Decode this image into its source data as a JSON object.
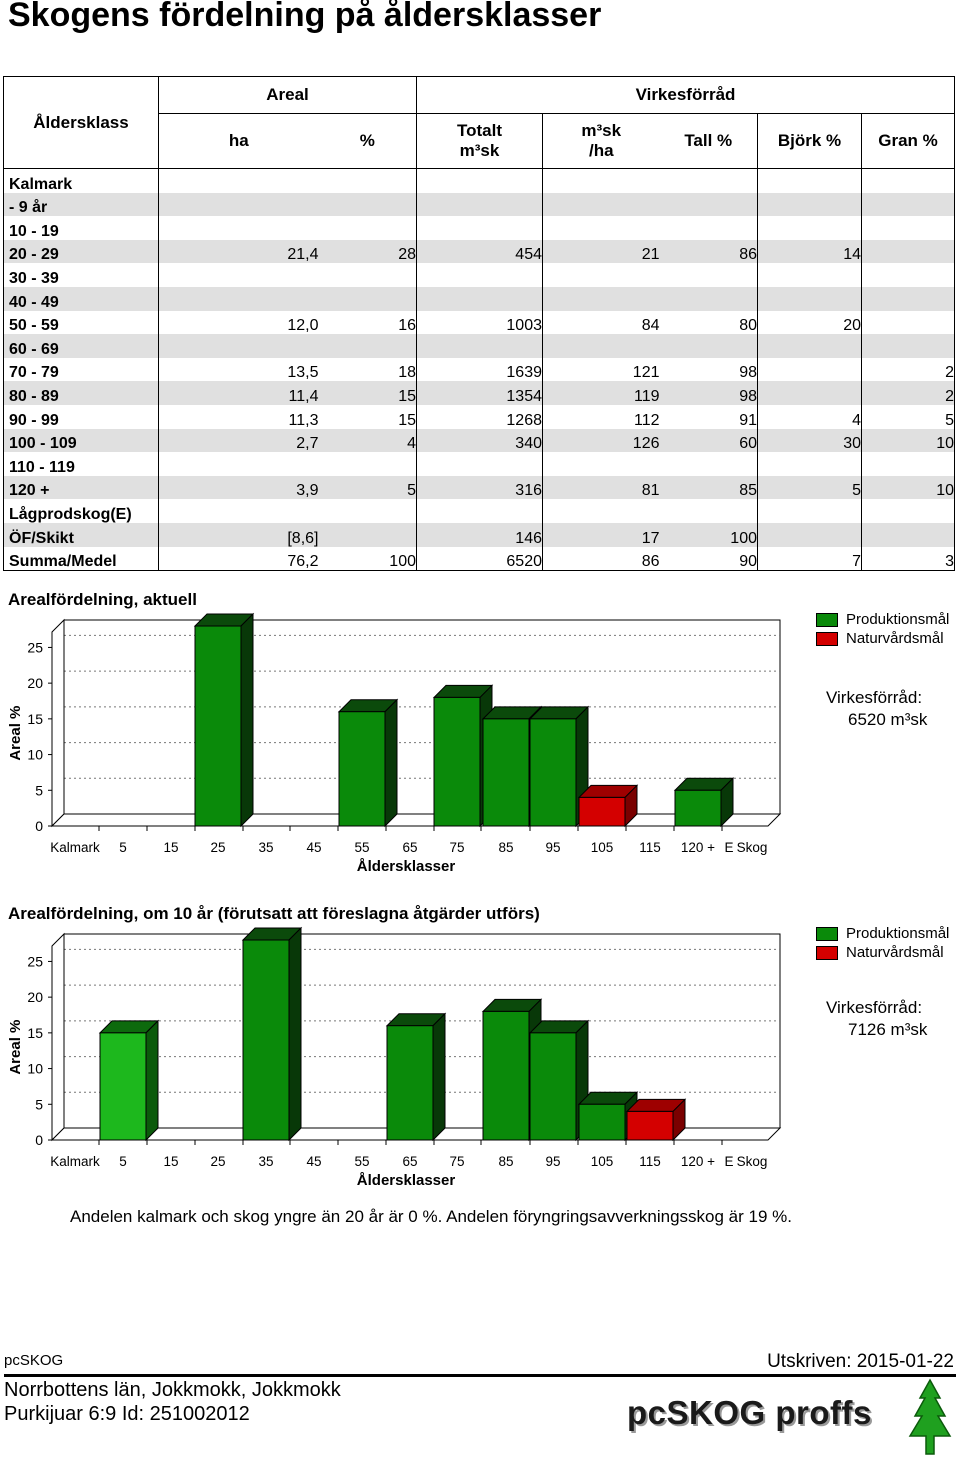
{
  "title": "Skogens fördelning på åldersklasser",
  "table": {
    "header_ageclass": "Åldersklass",
    "header_areal": "Areal",
    "header_virke": "Virkesförråd",
    "col_ha": "ha",
    "col_pct": "%",
    "col_totalt_line1": "Totalt",
    "col_totalt_line2": "m³sk",
    "col_m3ha_line1": "m³sk",
    "col_m3ha_line2": "/ha",
    "col_tall": "Tall %",
    "col_bjork": "Björk %",
    "col_gran": "Gran %",
    "rows": [
      {
        "label": "Kalmark",
        "ha": "",
        "pct": "",
        "totalt": "",
        "m3ha": "",
        "tall": "",
        "bjork": "",
        "gran": ""
      },
      {
        "label": "  -  9 år",
        "ha": "",
        "pct": "",
        "totalt": "",
        "m3ha": "",
        "tall": "",
        "bjork": "",
        "gran": ""
      },
      {
        "label": "10 -  19",
        "ha": "",
        "pct": "",
        "totalt": "",
        "m3ha": "",
        "tall": "",
        "bjork": "",
        "gran": ""
      },
      {
        "label": "20 -  29",
        "ha": "21,4",
        "pct": "28",
        "totalt": "454",
        "m3ha": "21",
        "tall": "86",
        "bjork": "14",
        "gran": ""
      },
      {
        "label": "30 -  39",
        "ha": "",
        "pct": "",
        "totalt": "",
        "m3ha": "",
        "tall": "",
        "bjork": "",
        "gran": ""
      },
      {
        "label": "40 -  49",
        "ha": "",
        "pct": "",
        "totalt": "",
        "m3ha": "",
        "tall": "",
        "bjork": "",
        "gran": ""
      },
      {
        "label": "50 -  59",
        "ha": "12,0",
        "pct": "16",
        "totalt": "1003",
        "m3ha": "84",
        "tall": "80",
        "bjork": "20",
        "gran": ""
      },
      {
        "label": "60 -  69",
        "ha": "",
        "pct": "",
        "totalt": "",
        "m3ha": "",
        "tall": "",
        "bjork": "",
        "gran": ""
      },
      {
        "label": "70 -  79",
        "ha": "13,5",
        "pct": "18",
        "totalt": "1639",
        "m3ha": "121",
        "tall": "98",
        "bjork": "",
        "gran": "2"
      },
      {
        "label": "80 -  89",
        "ha": "11,4",
        "pct": "15",
        "totalt": "1354",
        "m3ha": "119",
        "tall": "98",
        "bjork": "",
        "gran": "2"
      },
      {
        "label": "90 -  99",
        "ha": "11,3",
        "pct": "15",
        "totalt": "1268",
        "m3ha": "112",
        "tall": "91",
        "bjork": "4",
        "gran": "5"
      },
      {
        "label": "100 - 109",
        "ha": "2,7",
        "pct": "4",
        "totalt": "340",
        "m3ha": "126",
        "tall": "60",
        "bjork": "30",
        "gran": "10"
      },
      {
        "label": "110 - 119",
        "ha": "",
        "pct": "",
        "totalt": "",
        "m3ha": "",
        "tall": "",
        "bjork": "",
        "gran": ""
      },
      {
        "label": "120 +",
        "ha": "3,9",
        "pct": "5",
        "totalt": "316",
        "m3ha": "81",
        "tall": "85",
        "bjork": "5",
        "gran": "10"
      },
      {
        "label": "Lågprodskog(E)",
        "ha": "",
        "pct": "",
        "totalt": "",
        "m3ha": "",
        "tall": "",
        "bjork": "",
        "gran": ""
      },
      {
        "label": "ÖF/Skikt",
        "ha": "[8,6]",
        "pct": "",
        "totalt": "146",
        "m3ha": "17",
        "tall": "100",
        "bjork": "",
        "gran": ""
      },
      {
        "label": "Summa/Medel",
        "ha": "76,2",
        "pct": "100",
        "totalt": "6520",
        "m3ha": "86",
        "tall": "90",
        "bjork": "7",
        "gran": "3"
      }
    ]
  },
  "colors": {
    "produktion": "#0a8a0a",
    "produktion_light": "#1db81d",
    "naturvard": "#d40000"
  },
  "chart_data": [
    {
      "type": "bar",
      "title": "Arealfördelning, aktuell",
      "xlabel": "Åldersklasser",
      "ylabel": "Areal %",
      "ylim": [
        0,
        28
      ],
      "yticks": [
        "0",
        "5",
        "10",
        "15",
        "20",
        "25"
      ],
      "categories": [
        "Kalmark",
        "5",
        "15",
        "25",
        "35",
        "45",
        "55",
        "65",
        "75",
        "85",
        "95",
        "105",
        "115",
        "120 +",
        "E",
        "Skog"
      ],
      "bars": [
        {
          "category": "25",
          "value": 28,
          "goal": "Produktionsmål"
        },
        {
          "category": "55",
          "value": 16,
          "goal": "Produktionsmål"
        },
        {
          "category": "75",
          "value": 18,
          "goal": "Produktionsmål"
        },
        {
          "category": "85",
          "value": 15,
          "goal": "Produktionsmål"
        },
        {
          "category": "95",
          "value": 15,
          "goal": "Produktionsmål"
        },
        {
          "category": "105",
          "value": 4,
          "goal": "Naturvårdsmål"
        },
        {
          "category": "120 +",
          "value": 5,
          "goal": "Produktionsmål"
        }
      ],
      "legend": [
        "Produktionsmål",
        "Naturvårdsmål"
      ],
      "stock_label": "Virkesförråd:",
      "stock_value": "6520 m³sk"
    },
    {
      "type": "bar",
      "title": "Arealfördelning, om 10 år (förutsatt att föreslagna åtgärder utförs)",
      "xlabel": "Åldersklasser",
      "ylabel": "Areal %",
      "ylim": [
        0,
        28
      ],
      "yticks": [
        "0",
        "5",
        "10",
        "15",
        "20",
        "25"
      ],
      "categories": [
        "Kalmark",
        "5",
        "15",
        "25",
        "35",
        "45",
        "55",
        "65",
        "75",
        "85",
        "95",
        "105",
        "115",
        "120 +",
        "E",
        "Skog"
      ],
      "bars": [
        {
          "category": "5",
          "value": 15,
          "goal": "Produktionsmål",
          "light": true
        },
        {
          "category": "35",
          "value": 28,
          "goal": "Produktionsmål"
        },
        {
          "category": "65",
          "value": 16,
          "goal": "Produktionsmål"
        },
        {
          "category": "85",
          "value": 18,
          "goal": "Produktionsmål"
        },
        {
          "category": "95",
          "value": 15,
          "goal": "Produktionsmål"
        },
        {
          "category": "105",
          "value": 5,
          "goal": "Produktionsmål"
        },
        {
          "category": "115",
          "value": 4,
          "goal": "Naturvårdsmål"
        }
      ],
      "legend": [
        "Produktionsmål",
        "Naturvårdsmål"
      ],
      "stock_label": "Virkesförråd:",
      "stock_value": "7126 m³sk"
    }
  ],
  "note": "Andelen kalmark och skog yngre än 20 år är 0 %. Andelen föryngringsavverkningsskog är 19 %.",
  "footer": {
    "app": "pcSKOG",
    "date": "Utskriven: 2015-01-22",
    "location": "Norrbottens län, Jokkmokk, Jokkmokk",
    "property": "Purkijuar 6:9 Id: 251002012",
    "logo": "pcSKOG proffs"
  }
}
